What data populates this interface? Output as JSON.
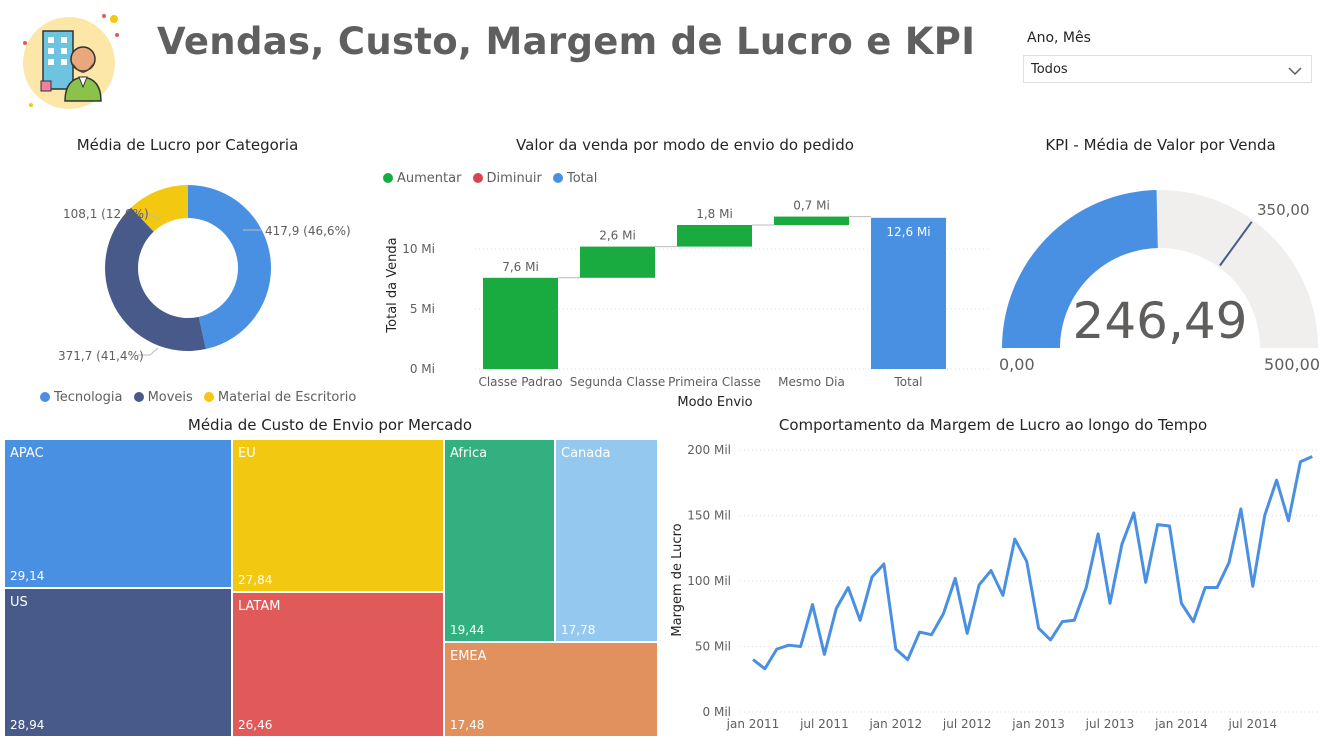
{
  "header": {
    "title": "Vendas, Custo, Margem de Lucro e KPI",
    "logo_icon": "businessman-building-icon"
  },
  "slicer": {
    "label": "Ano, Mês",
    "value": "Todos"
  },
  "donut": {
    "title": "Média de Lucro por Categoria",
    "labels": [
      "417,9 (46,6%)",
      "371,7 (41,4%)",
      "108,1 (12,0%)"
    ],
    "legend": [
      "Tecnologia",
      "Moveis",
      "Material de Escritorio"
    ],
    "colors": [
      "#4a90e2",
      "#485a89",
      "#f2c811"
    ],
    "chart_data": {
      "type": "pie",
      "categories": [
        "Tecnologia",
        "Moveis",
        "Material de Escritorio"
      ],
      "values": [
        417.9,
        371.7,
        108.1
      ]
    }
  },
  "waterfall": {
    "title": "Valor da venda por modo de envio do pedido",
    "legend": [
      "Aumentar",
      "Diminuir",
      "Total"
    ],
    "legend_colors": [
      "#1aab40",
      "#d64550",
      "#4a90e2"
    ],
    "xlabel": "Modo Envio",
    "ylabel": "Total da Venda",
    "yticks": [
      "0 Mi",
      "5 Mi",
      "10 Mi"
    ],
    "categories": [
      "Classe Padrao",
      "Segunda Classe",
      "Primeira Classe",
      "Mesmo Dia",
      "Total"
    ],
    "value_labels": [
      "7,6 Mi",
      "2,6 Mi",
      "1,8 Mi",
      "0,7 Mi",
      "12,6 Mi"
    ],
    "chart_data": {
      "type": "bar",
      "categories": [
        "Classe Padrao",
        "Segunda Classe",
        "Primeira Classe",
        "Mesmo Dia",
        "Total"
      ],
      "values": [
        7.6,
        2.6,
        1.8,
        0.7,
        12.6
      ],
      "ylim": [
        0,
        13
      ]
    }
  },
  "gauge": {
    "title": "KPI - Média de Valor por Venda",
    "value_label": "246,49",
    "min_label": "0,00",
    "max_label": "500,00",
    "target_label": "350,00",
    "value": 246.49,
    "min": 0,
    "max": 500,
    "target": 350,
    "fill_color": "#4a90e2",
    "track_color": "#f0efee"
  },
  "treemap": {
    "title": "Média de Custo de Envio por Mercado",
    "cells": [
      {
        "name": "APAC",
        "value": "29,14",
        "color": "#4a90e2"
      },
      {
        "name": "US",
        "value": "28,94",
        "color": "#485a89"
      },
      {
        "name": "EU",
        "value": "27,84",
        "color": "#f2c811"
      },
      {
        "name": "LATAM",
        "value": "26,46",
        "color": "#e05a5a"
      },
      {
        "name": "Africa",
        "value": "19,44",
        "color": "#33b07f"
      },
      {
        "name": "Canada",
        "value": "17,78",
        "color": "#95c8ef"
      },
      {
        "name": "EMEA",
        "value": "17,48",
        "color": "#e0915e"
      }
    ],
    "chart_data": {
      "type": "treemap",
      "categories": [
        "APAC",
        "US",
        "EU",
        "LATAM",
        "Africa",
        "Canada",
        "EMEA"
      ],
      "values": [
        29.14,
        28.94,
        27.84,
        26.46,
        19.44,
        17.78,
        17.48
      ]
    }
  },
  "line": {
    "title": "Comportamento da Margem de Lucro ao longo do Tempo",
    "ylabel": "Margem de Lucro",
    "yticks": [
      "0 Mil",
      "50 Mil",
      "100 Mil",
      "150 Mil",
      "200 Mil"
    ],
    "xticks": [
      "jan 2011",
      "jul 2011",
      "jan 2012",
      "jul 2012",
      "jan 2013",
      "jul 2013",
      "jan 2014",
      "jul 2014"
    ],
    "color": "#4a90e2",
    "chart_data": {
      "type": "line",
      "x": [
        "2011-01",
        "2011-02",
        "2011-03",
        "2011-04",
        "2011-05",
        "2011-06",
        "2011-07",
        "2011-08",
        "2011-09",
        "2011-10",
        "2011-11",
        "2011-12",
        "2012-01",
        "2012-02",
        "2012-03",
        "2012-04",
        "2012-05",
        "2012-06",
        "2012-07",
        "2012-08",
        "2012-09",
        "2012-10",
        "2012-11",
        "2012-12",
        "2013-01",
        "2013-02",
        "2013-03",
        "2013-04",
        "2013-05",
        "2013-06",
        "2013-07",
        "2013-08",
        "2013-09",
        "2013-10",
        "2013-11",
        "2013-12",
        "2014-01",
        "2014-02",
        "2014-03",
        "2014-04",
        "2014-05",
        "2014-06",
        "2014-07",
        "2014-08",
        "2014-09",
        "2014-10",
        "2014-11",
        "2014-12"
      ],
      "y": [
        40,
        33,
        48,
        51,
        50,
        82,
        44,
        79,
        95,
        70,
        103,
        113,
        48,
        40,
        61,
        59,
        75,
        102,
        60,
        97,
        108,
        89,
        132,
        115,
        64,
        55,
        69,
        70,
        95,
        136,
        83,
        128,
        152,
        99,
        143,
        142,
        83,
        69,
        95,
        95,
        114,
        155,
        96,
        150,
        177,
        146,
        191,
        195
      ],
      "ylim": [
        0,
        200
      ]
    }
  }
}
